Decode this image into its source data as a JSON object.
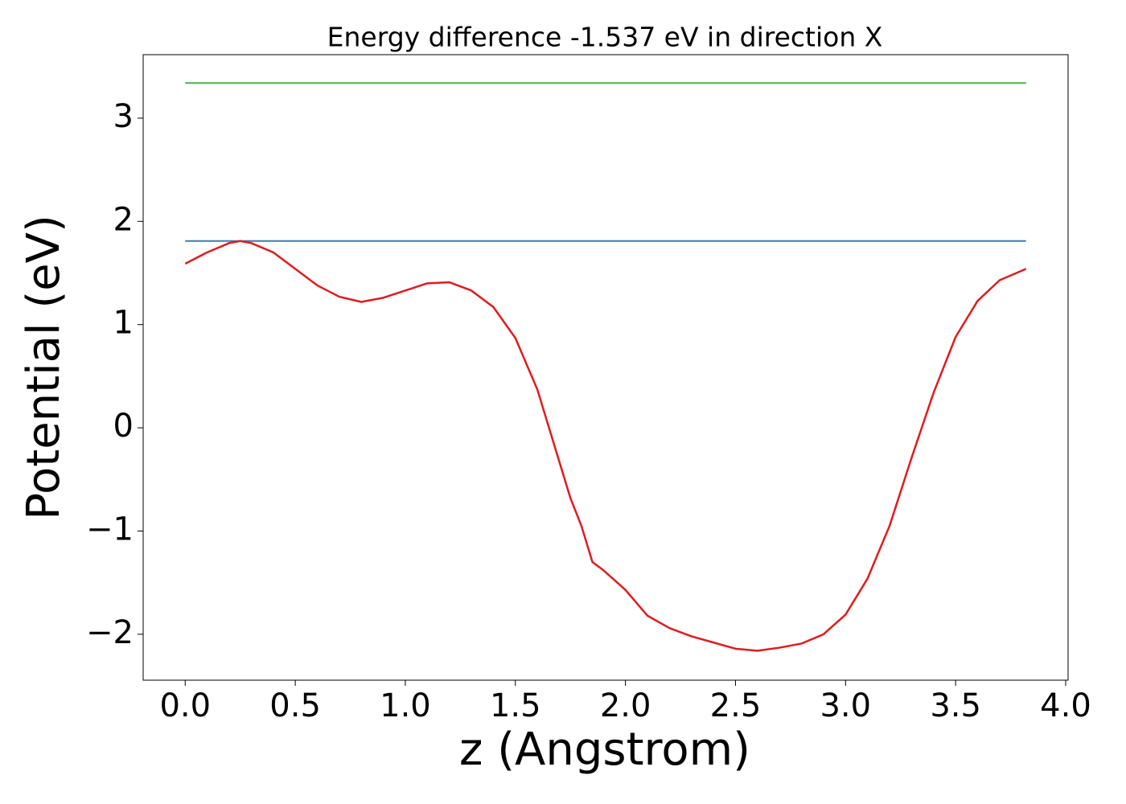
{
  "chart_data": {
    "type": "line",
    "title": "Energy difference -1.537 eV in direction X",
    "x_label": "z (Angstrom)",
    "y_label": "Potential (eV)",
    "x": [
      0,
      0.1,
      0.2,
      0.25,
      0.3,
      0.4,
      0.5,
      0.6,
      0.7,
      0.8,
      0.9,
      1.0,
      1.1,
      1.2,
      1.3,
      1.4,
      1.5,
      1.6,
      1.7,
      1.75,
      1.8,
      1.85,
      1.9,
      2.0,
      2.1,
      2.2,
      2.3,
      2.4,
      2.5,
      2.6,
      2.7,
      2.8,
      2.9,
      3.0,
      3.1,
      3.2,
      3.3,
      3.4,
      3.5,
      3.6,
      3.7,
      3.82
    ],
    "series": [
      {
        "color": "#e31a1c",
        "values": [
          1.59,
          1.7,
          1.79,
          1.81,
          1.79,
          1.7,
          1.54,
          1.38,
          1.27,
          1.22,
          1.26,
          1.33,
          1.4,
          1.41,
          1.33,
          1.17,
          0.87,
          0.37,
          -0.33,
          -0.68,
          -0.95,
          -1.3,
          -1.38,
          -1.57,
          -1.82,
          -1.94,
          -2.02,
          -2.08,
          -2.14,
          -2.16,
          -2.13,
          -2.09,
          -2.0,
          -1.81,
          -1.46,
          -0.95,
          -0.29,
          0.34,
          0.88,
          1.23,
          1.43,
          1.54
        ]
      }
    ],
    "hlines": [
      {
        "value": 3.34,
        "color": "#4daf4a"
      },
      {
        "value": 1.81,
        "color": "#377eb8"
      }
    ],
    "xlim": [
      -0.191,
      4.011
    ],
    "ylim": [
      -2.445,
      3.615
    ],
    "xticks": [
      {
        "value": 0,
        "label": "0.0"
      },
      {
        "value": 0.5,
        "label": "0.5"
      },
      {
        "value": 1,
        "label": "1.0"
      },
      {
        "value": 1.5,
        "label": "1.5"
      },
      {
        "value": 2,
        "label": "2.0"
      },
      {
        "value": 2.5,
        "label": "2.5"
      },
      {
        "value": 3,
        "label": "3.0"
      },
      {
        "value": 3.5,
        "label": "3.5"
      },
      {
        "value": 4,
        "label": "4.0"
      }
    ],
    "yticks": [
      {
        "value": -2,
        "label": "−2"
      },
      {
        "value": -1,
        "label": "−1"
      },
      0,
      1,
      2,
      3
    ]
  }
}
